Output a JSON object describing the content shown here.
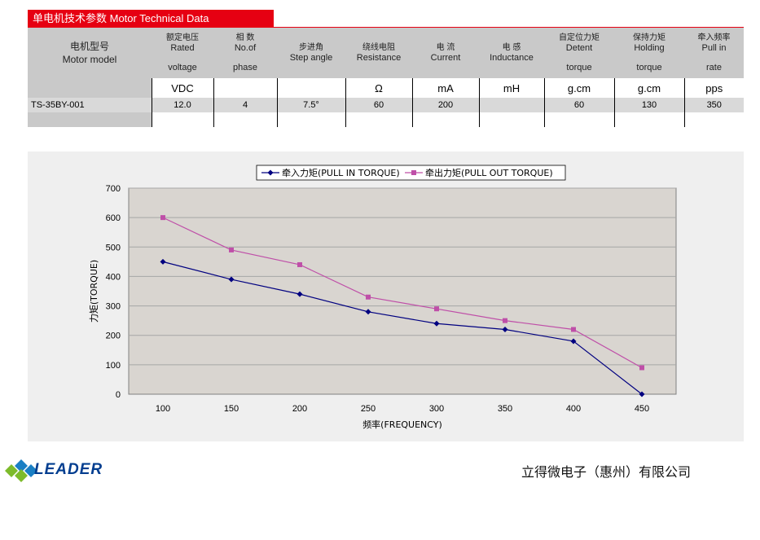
{
  "section_title": "单电机技术参数 Motor Technical Data",
  "table": {
    "model_header_cn": "电机型号",
    "model_header_en": "Motor model",
    "columns": [
      {
        "cn": "额定电压",
        "en": "Rated",
        "sub": "voltage",
        "unit": "VDC"
      },
      {
        "cn": "相 数",
        "en": "No.of",
        "sub": "phase",
        "unit": ""
      },
      {
        "cn": "步进角",
        "en": "Step angle",
        "sub": "",
        "unit": ""
      },
      {
        "cn": "绕线电阻",
        "en": "Resistance",
        "sub": "",
        "unit": "Ω"
      },
      {
        "cn": "电 流",
        "en": "Current",
        "sub": "",
        "unit": "mA"
      },
      {
        "cn": "电 感",
        "en": "Inductance",
        "sub": "",
        "unit": "mH"
      },
      {
        "cn": "自定位力矩",
        "en": "Detent",
        "sub": "torque",
        "unit": "g.cm"
      },
      {
        "cn": "保持力矩",
        "en": "Holding",
        "sub": "torque",
        "unit": "g.cm"
      },
      {
        "cn": "牵入频率",
        "en": "Pull in",
        "sub": "rate",
        "unit": "pps"
      }
    ],
    "rows": [
      {
        "model": "TS-35BY-001",
        "values": [
          "12.0",
          "4",
          "7.5°",
          "60",
          "200",
          "",
          "60",
          "130",
          "350"
        ]
      }
    ]
  },
  "chart_data": {
    "type": "line",
    "x": [
      100,
      150,
      200,
      250,
      300,
      350,
      400,
      450
    ],
    "series": [
      {
        "name": "牵入力矩(PULL IN TORQUE)",
        "color": "#000080",
        "marker": "diamond",
        "values": [
          450,
          390,
          340,
          280,
          240,
          220,
          180,
          0
        ]
      },
      {
        "name": "牵出力矩(PULL OUT TORQUE)",
        "color": "#bf4fa8",
        "marker": "square",
        "values": [
          600,
          490,
          440,
          330,
          290,
          250,
          220,
          90
        ]
      }
    ],
    "xlabel": "频率(FREQUENCY)",
    "ylabel": "力矩(TORQUE)",
    "ylim": [
      0,
      700
    ],
    "yticks": [
      0,
      100,
      200,
      300,
      400,
      500,
      600,
      700
    ],
    "grid": true,
    "legend_position": "top"
  },
  "logo": {
    "name": "leader-diamond-icon",
    "text": "LEADER"
  },
  "company_name": "立得微电子（惠州）有限公司"
}
